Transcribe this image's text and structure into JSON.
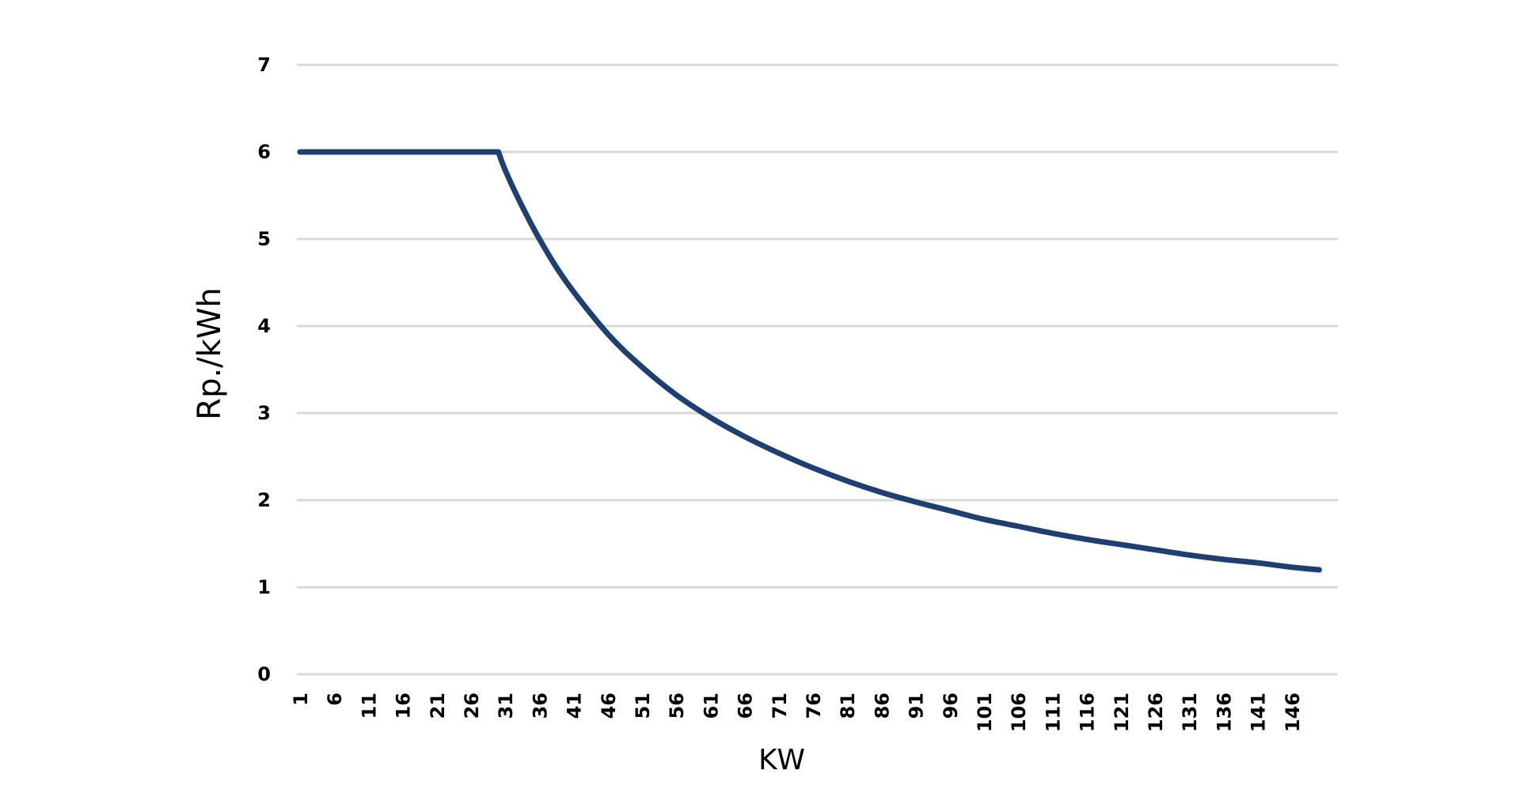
{
  "chart_data": {
    "type": "line",
    "title": "",
    "xlabel": "KW",
    "ylabel": "Rp./kWh",
    "ylim": [
      0,
      7
    ],
    "yticks": [
      "0",
      "1",
      "2",
      "3",
      "4",
      "5",
      "6",
      "7"
    ],
    "xlim": [
      1,
      150
    ],
    "xticks": [
      "1",
      "6",
      "11",
      "16",
      "21",
      "26",
      "31",
      "36",
      "41",
      "46",
      "51",
      "56",
      "61",
      "66",
      "71",
      "76",
      "81",
      "86",
      "91",
      "96",
      "101",
      "106",
      "111",
      "116",
      "121",
      "126",
      "131",
      "136",
      "141",
      "146"
    ],
    "grid": true,
    "legend": "none",
    "series": [
      {
        "color": "#1f3f73",
        "points": [
          [
            1,
            6.0
          ],
          [
            30,
            6.0
          ],
          [
            31,
            5.79
          ],
          [
            33,
            5.45
          ],
          [
            36,
            5.0
          ],
          [
            40,
            4.5
          ],
          [
            46,
            3.91
          ],
          [
            51,
            3.53
          ],
          [
            56,
            3.21
          ],
          [
            61,
            2.95
          ],
          [
            66,
            2.73
          ],
          [
            71,
            2.54
          ],
          [
            76,
            2.37
          ],
          [
            81,
            2.22
          ],
          [
            86,
            2.09
          ],
          [
            91,
            1.98
          ],
          [
            96,
            1.88
          ],
          [
            101,
            1.78
          ],
          [
            106,
            1.7
          ],
          [
            111,
            1.62
          ],
          [
            116,
            1.55
          ],
          [
            121,
            1.49
          ],
          [
            126,
            1.43
          ],
          [
            131,
            1.37
          ],
          [
            136,
            1.32
          ],
          [
            141,
            1.28
          ],
          [
            146,
            1.23
          ],
          [
            150,
            1.2
          ]
        ]
      }
    ]
  }
}
